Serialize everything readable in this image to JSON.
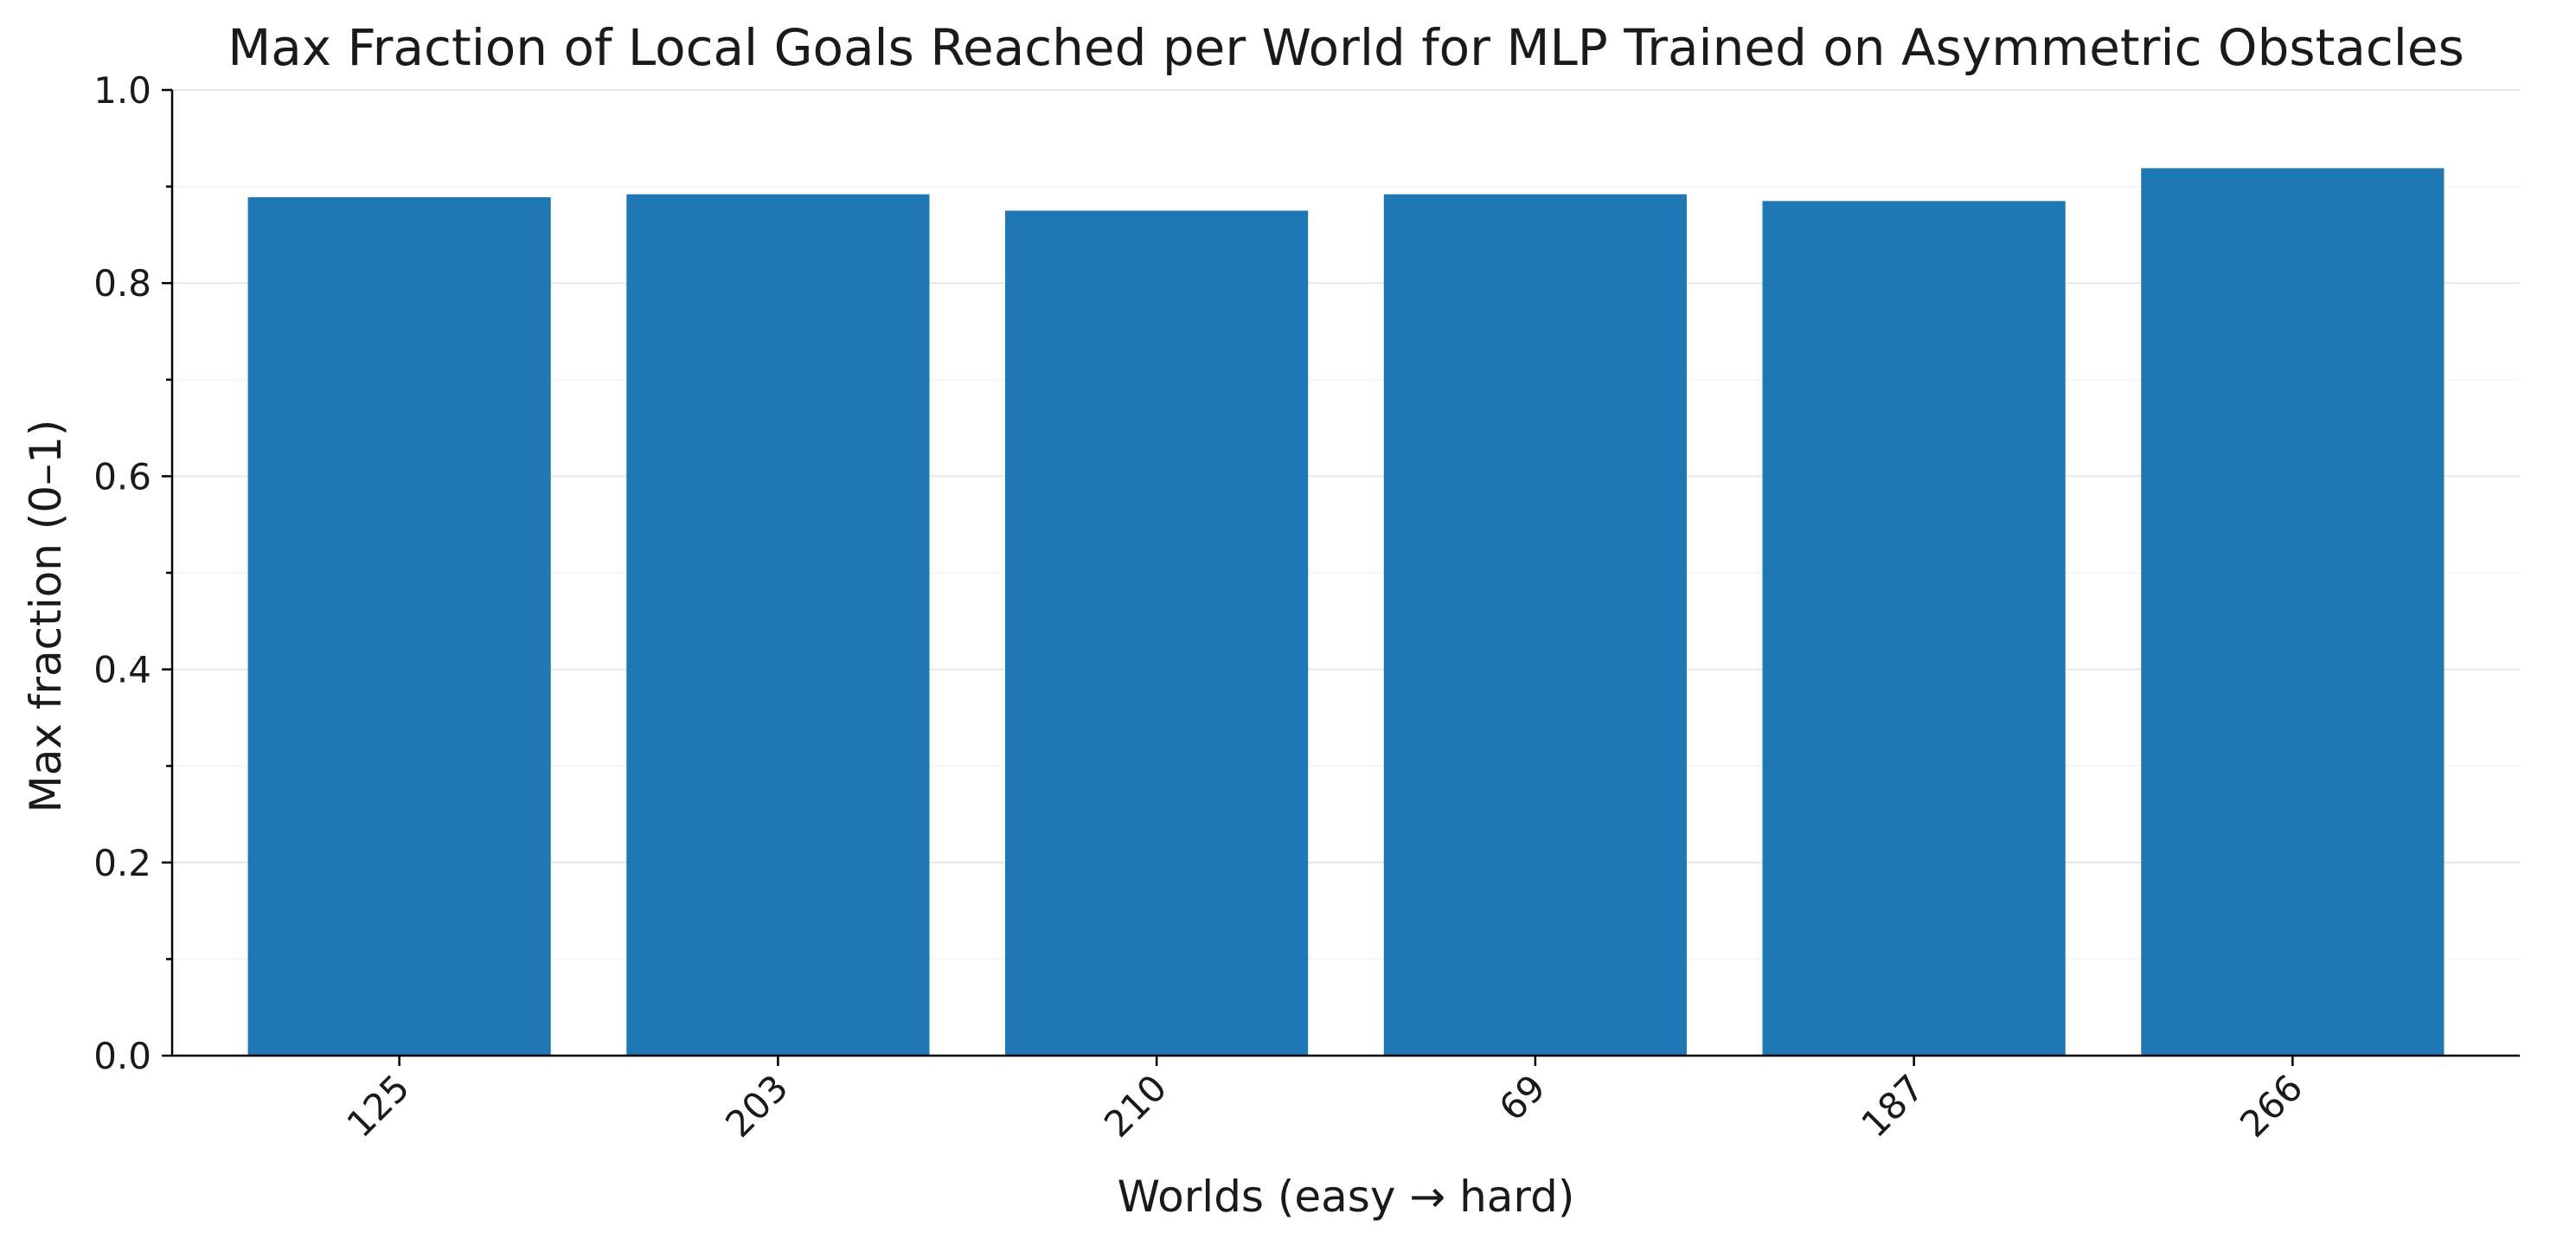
{
  "chart_data": {
    "type": "bar",
    "title": "Max Fraction of Local Goals Reached per World for MLP Trained on Asymmetric Obstacles",
    "xlabel": "Worlds (easy → hard)",
    "ylabel": "Max fraction (0–1)",
    "categories": [
      "125",
      "203",
      "210",
      "69",
      "187",
      "266"
    ],
    "values": [
      0.889,
      0.892,
      0.875,
      0.892,
      0.885,
      0.919
    ],
    "ylim": [
      0,
      1.0
    ],
    "yticks": [
      "0.0",
      "0.2",
      "0.4",
      "0.6",
      "0.8",
      "1.0"
    ],
    "ytick_values": [
      0,
      0.2,
      0.4,
      0.6,
      0.8,
      1.0
    ],
    "y_minor_ticks": [
      0.1,
      0.3,
      0.5,
      0.7,
      0.9
    ],
    "grid": "y",
    "bar_color": "#1f77b4"
  }
}
